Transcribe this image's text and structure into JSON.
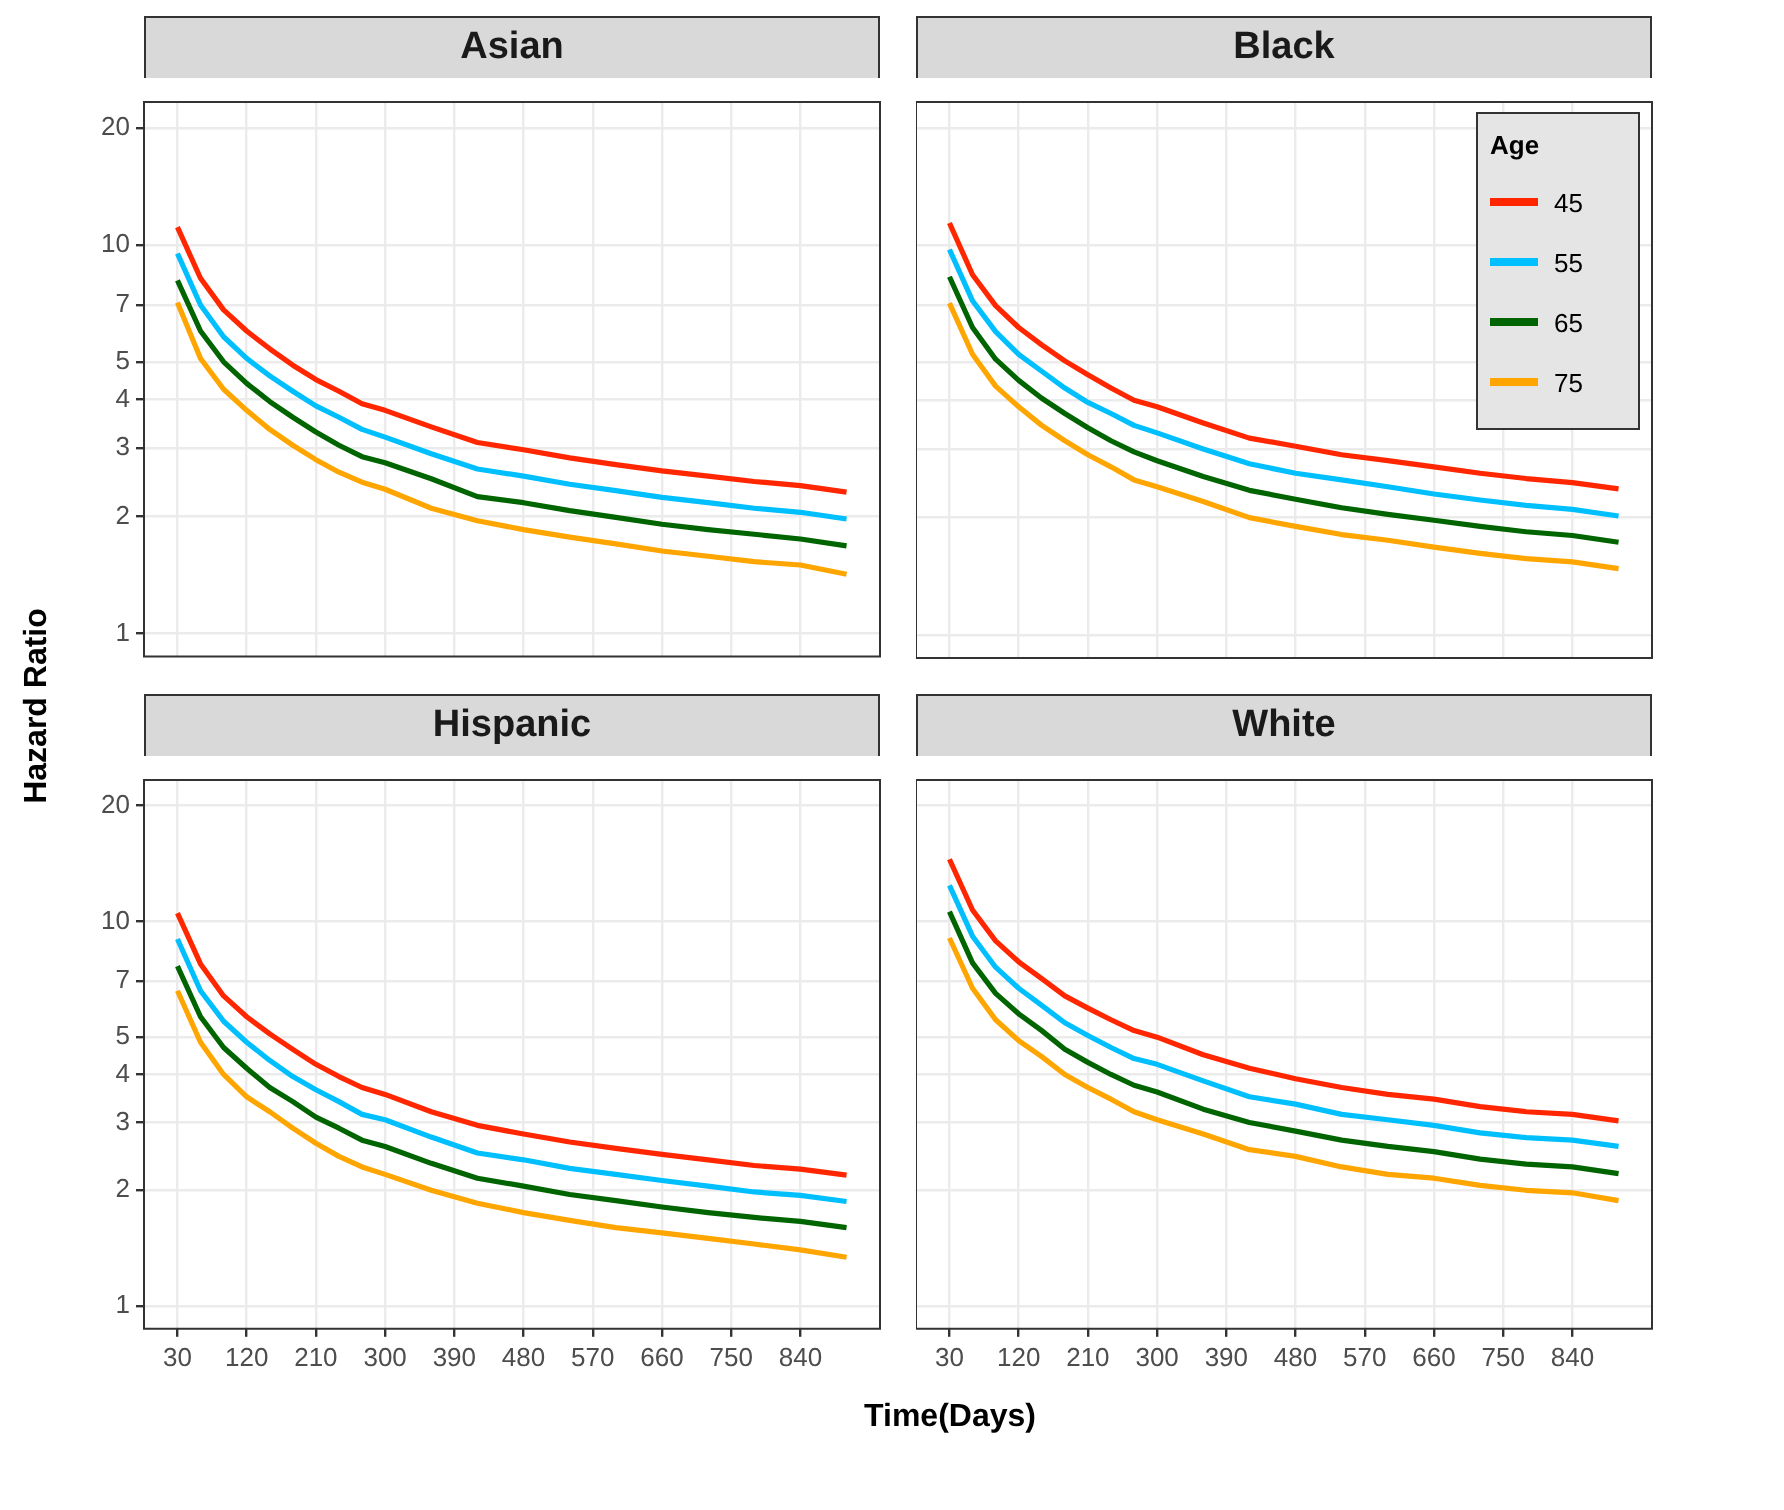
{
  "chart_data": [
    {
      "type": "line",
      "title": "Asian",
      "ylabel": "Hazard Ratio",
      "log": "y",
      "grid": true,
      "marker": "none",
      "tick_labels": "y",
      "x": [
        30,
        60,
        90,
        120,
        150,
        180,
        210,
        240,
        270,
        300,
        360,
        420,
        480,
        540,
        600,
        660,
        720,
        780,
        840,
        900
      ],
      "xlim": [
        -13.5,
        943.5
      ],
      "xticks": [
        30,
        120,
        210,
        300,
        390,
        480,
        570,
        660,
        750,
        840
      ],
      "ylim": [
        0.873,
        23.3
      ],
      "yticks": [
        1,
        2,
        3,
        4,
        5,
        7,
        10,
        20
      ],
      "series": [
        {
          "color": "#ff2600",
          "values": [
            11.1,
            8.2,
            6.8,
            6.0,
            5.4,
            4.9,
            4.5,
            4.2,
            3.9,
            3.75,
            3.4,
            3.1,
            2.97,
            2.83,
            2.72,
            2.62,
            2.54,
            2.46,
            2.4,
            2.31
          ]
        },
        {
          "color": "#00bfff",
          "values": [
            9.5,
            7.0,
            5.8,
            5.1,
            4.6,
            4.2,
            3.85,
            3.6,
            3.35,
            3.2,
            2.9,
            2.65,
            2.54,
            2.42,
            2.33,
            2.24,
            2.17,
            2.1,
            2.05,
            1.97
          ]
        },
        {
          "color": "#006400",
          "values": [
            8.1,
            6.0,
            5.0,
            4.4,
            3.95,
            3.6,
            3.3,
            3.05,
            2.85,
            2.75,
            2.5,
            2.25,
            2.17,
            2.07,
            1.99,
            1.91,
            1.85,
            1.8,
            1.75,
            1.68
          ]
        },
        {
          "color": "#ffa500",
          "values": [
            7.1,
            5.1,
            4.25,
            3.75,
            3.35,
            3.05,
            2.8,
            2.6,
            2.45,
            2.35,
            2.1,
            1.95,
            1.85,
            1.77,
            1.7,
            1.63,
            1.58,
            1.53,
            1.5,
            1.42
          ]
        }
      ]
    },
    {
      "type": "line",
      "title": "Black",
      "log": "y",
      "grid": true,
      "marker": "none",
      "tick_labels": false,
      "legend": "top right",
      "legend_title": "Age",
      "x": [
        30,
        60,
        90,
        120,
        150,
        180,
        210,
        240,
        270,
        300,
        360,
        420,
        480,
        540,
        600,
        660,
        720,
        780,
        840,
        900
      ],
      "xlim": [
        -13.5,
        943.5
      ],
      "xticks": [
        30,
        120,
        210,
        300,
        390,
        480,
        570,
        660,
        750,
        840
      ],
      "ylim": [
        0.873,
        23.3
      ],
      "yticks": [
        1,
        2,
        3,
        4,
        5,
        7,
        10,
        20
      ],
      "series": [
        {
          "name": "45",
          "color": "#ff2600",
          "values": [
            11.4,
            8.4,
            7.0,
            6.15,
            5.55,
            5.05,
            4.65,
            4.3,
            4.0,
            3.85,
            3.5,
            3.2,
            3.05,
            2.9,
            2.8,
            2.7,
            2.6,
            2.52,
            2.46,
            2.37
          ]
        },
        {
          "name": "55",
          "color": "#00bfff",
          "values": [
            9.75,
            7.2,
            6.0,
            5.25,
            4.75,
            4.3,
            3.95,
            3.7,
            3.45,
            3.3,
            3.0,
            2.75,
            2.6,
            2.5,
            2.4,
            2.3,
            2.22,
            2.15,
            2.1,
            2.02
          ]
        },
        {
          "name": "65",
          "color": "#006400",
          "values": [
            8.3,
            6.15,
            5.1,
            4.5,
            4.05,
            3.7,
            3.4,
            3.15,
            2.95,
            2.8,
            2.55,
            2.35,
            2.23,
            2.12,
            2.04,
            1.97,
            1.9,
            1.84,
            1.8,
            1.73
          ]
        },
        {
          "name": "75",
          "color": "#ffa500",
          "values": [
            7.1,
            5.25,
            4.35,
            3.85,
            3.45,
            3.15,
            2.9,
            2.7,
            2.5,
            2.4,
            2.2,
            2.0,
            1.9,
            1.81,
            1.75,
            1.68,
            1.62,
            1.57,
            1.54,
            1.48
          ]
        }
      ]
    },
    {
      "type": "line",
      "title": "Hispanic",
      "xlabel": "Time(Days)",
      "log": "y",
      "grid": true,
      "marker": "none",
      "x": [
        30,
        60,
        90,
        120,
        150,
        180,
        210,
        240,
        270,
        300,
        360,
        420,
        480,
        540,
        600,
        660,
        720,
        780,
        840,
        900
      ],
      "xlim": [
        -13.5,
        943.5
      ],
      "xticks": [
        30,
        120,
        210,
        300,
        390,
        480,
        570,
        660,
        750,
        840
      ],
      "ylim": [
        0.873,
        23.3
      ],
      "yticks": [
        1,
        2,
        3,
        4,
        5,
        7,
        10,
        20
      ],
      "series": [
        {
          "color": "#ff2600",
          "values": [
            10.5,
            7.75,
            6.4,
            5.65,
            5.1,
            4.65,
            4.25,
            3.95,
            3.7,
            3.55,
            3.2,
            2.95,
            2.8,
            2.67,
            2.57,
            2.48,
            2.4,
            2.32,
            2.27,
            2.19
          ]
        },
        {
          "color": "#00bfff",
          "values": [
            9.0,
            6.6,
            5.5,
            4.85,
            4.35,
            3.95,
            3.65,
            3.4,
            3.15,
            3.05,
            2.75,
            2.5,
            2.4,
            2.28,
            2.2,
            2.12,
            2.05,
            1.98,
            1.94,
            1.87
          ]
        },
        {
          "color": "#006400",
          "values": [
            7.65,
            5.65,
            4.7,
            4.15,
            3.7,
            3.4,
            3.1,
            2.9,
            2.7,
            2.6,
            2.35,
            2.15,
            2.05,
            1.95,
            1.88,
            1.81,
            1.75,
            1.7,
            1.66,
            1.6
          ]
        },
        {
          "color": "#ffa500",
          "values": [
            6.6,
            4.85,
            4.0,
            3.5,
            3.2,
            2.9,
            2.65,
            2.45,
            2.3,
            2.2,
            2.0,
            1.85,
            1.75,
            1.67,
            1.6,
            1.55,
            1.5,
            1.45,
            1.4,
            1.34
          ]
        }
      ]
    },
    {
      "type": "line",
      "title": "White",
      "log": "y",
      "grid": true,
      "marker": "none",
      "tick_labels": "x",
      "x": [
        30,
        60,
        90,
        120,
        150,
        180,
        210,
        240,
        270,
        300,
        360,
        420,
        480,
        540,
        600,
        660,
        720,
        780,
        840,
        900
      ],
      "xlim": [
        -13.5,
        943.5
      ],
      "xticks": [
        30,
        120,
        210,
        300,
        390,
        480,
        570,
        660,
        750,
        840
      ],
      "ylim": [
        0.873,
        23.3
      ],
      "yticks": [
        1,
        2,
        3,
        4,
        5,
        7,
        10,
        20
      ],
      "series": [
        {
          "color": "#ff2600",
          "values": [
            14.5,
            10.7,
            8.9,
            7.85,
            7.1,
            6.4,
            5.95,
            5.55,
            5.2,
            5.0,
            4.5,
            4.15,
            3.9,
            3.7,
            3.55,
            3.45,
            3.3,
            3.2,
            3.15,
            3.03
          ]
        },
        {
          "color": "#00bfff",
          "values": [
            12.4,
            9.15,
            7.6,
            6.7,
            6.05,
            5.45,
            5.05,
            4.7,
            4.4,
            4.25,
            3.85,
            3.5,
            3.35,
            3.15,
            3.05,
            2.95,
            2.82,
            2.74,
            2.7,
            2.6
          ]
        },
        {
          "color": "#006400",
          "values": [
            10.6,
            7.8,
            6.5,
            5.75,
            5.2,
            4.65,
            4.3,
            4.0,
            3.75,
            3.6,
            3.25,
            3.0,
            2.85,
            2.7,
            2.6,
            2.52,
            2.41,
            2.34,
            2.3,
            2.21
          ]
        },
        {
          "color": "#ffa500",
          "values": [
            9.05,
            6.7,
            5.55,
            4.9,
            4.45,
            4.0,
            3.7,
            3.45,
            3.2,
            3.05,
            2.8,
            2.55,
            2.45,
            2.3,
            2.2,
            2.15,
            2.06,
            2.0,
            1.97,
            1.88
          ]
        }
      ]
    }
  ]
}
